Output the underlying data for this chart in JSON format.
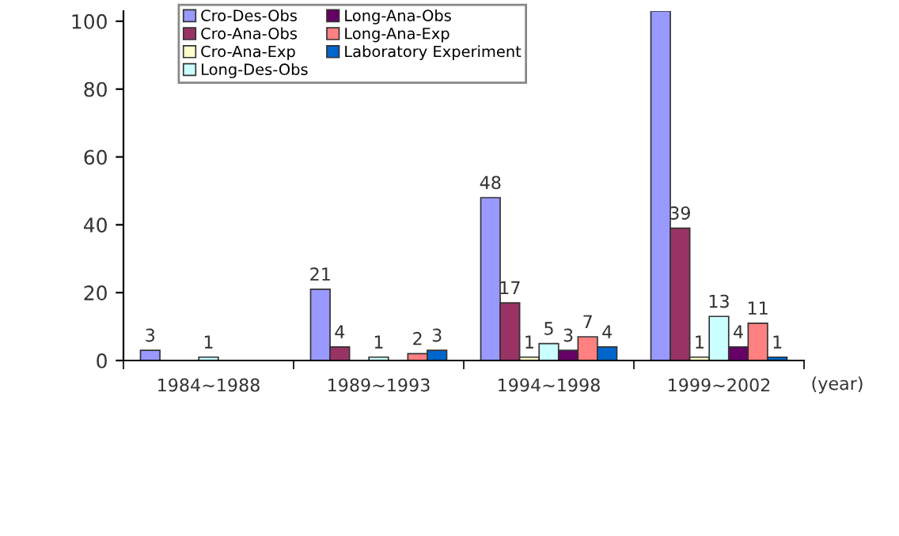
{
  "chart_data": {
    "type": "bar",
    "categories": [
      "1984~1988",
      "1989~1993",
      "1994~1998",
      "1999~2002"
    ],
    "xlabel": "(year)",
    "ylim": [
      0,
      103
    ],
    "yticks": [
      0,
      20,
      40,
      60,
      80,
      100
    ],
    "grid": false,
    "legend": "top",
    "series": [
      {
        "name": "Cro-Des-Obs",
        "color": "#9999ff",
        "values": [
          3,
          21,
          48,
          103
        ],
        "value_labels": [
          "3",
          "21",
          "48",
          null
        ]
      },
      {
        "name": "Cro-Ana-Obs",
        "color": "#993366",
        "values": [
          null,
          4,
          17,
          39
        ],
        "value_labels": [
          null,
          "4",
          "17",
          "39"
        ]
      },
      {
        "name": "Cro-Ana-Exp",
        "color": "#ffffcc",
        "values": [
          null,
          null,
          1,
          1
        ],
        "value_labels": [
          null,
          null,
          "1",
          "1"
        ]
      },
      {
        "name": "Long-Des-Obs",
        "color": "#ccffff",
        "values": [
          1,
          1,
          5,
          13
        ],
        "value_labels": [
          "1",
          "1",
          "5",
          "13"
        ]
      },
      {
        "name": "Long-Ana-Obs",
        "color": "#660066",
        "values": [
          null,
          null,
          3,
          4
        ],
        "value_labels": [
          null,
          null,
          "3",
          "4"
        ]
      },
      {
        "name": "Long-Ana-Exp",
        "color": "#ff8080",
        "values": [
          null,
          2,
          7,
          11
        ],
        "value_labels": [
          null,
          "2",
          "7",
          "11"
        ]
      },
      {
        "name": "Laboratory Experiment",
        "color": "#0066cc",
        "values": [
          null,
          3,
          4,
          1
        ],
        "value_labels": [
          null,
          "3",
          "4",
          "1"
        ]
      }
    ]
  }
}
